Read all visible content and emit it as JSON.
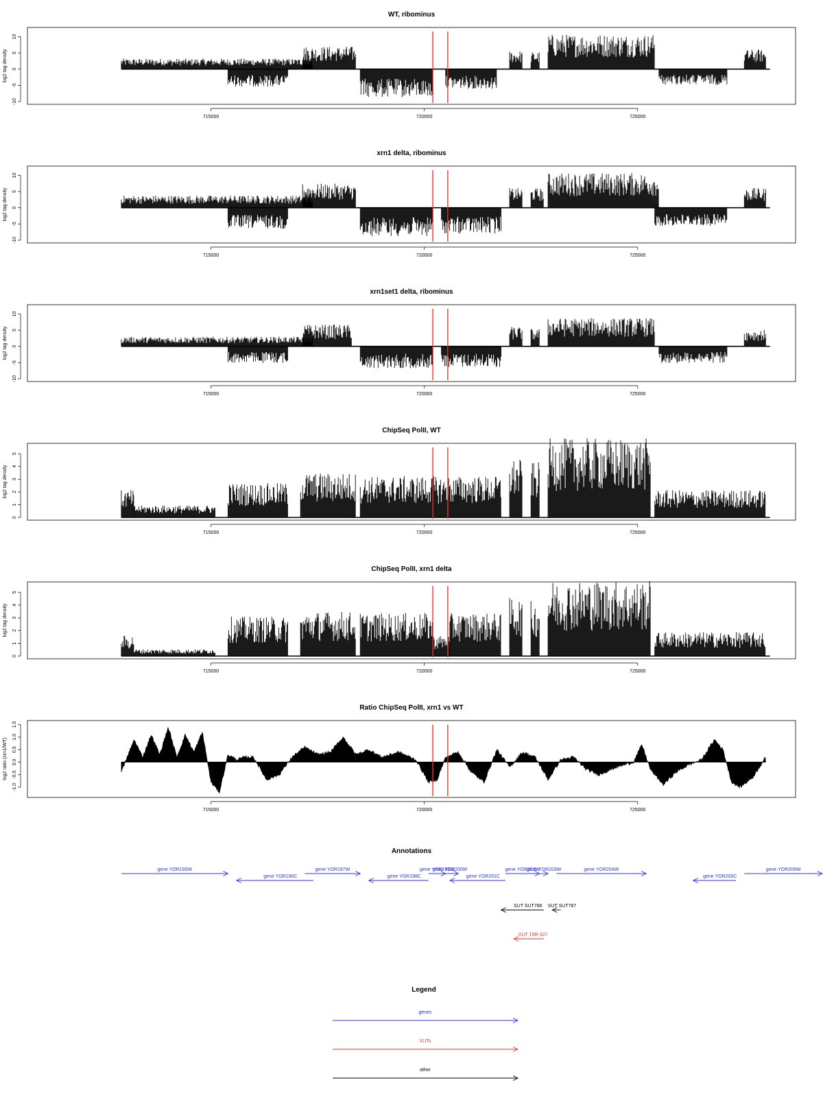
{
  "chart_data": [
    {
      "type": "bar",
      "title": "WT, ribominus",
      "ylabel": "log2 tag density",
      "ylim": [
        -10,
        12
      ],
      "yticks": [
        "-10",
        "-5",
        "0",
        "5",
        "10"
      ],
      "xlim": [
        710700,
        728700
      ],
      "xticks": [
        715000,
        720000,
        725000
      ],
      "xtick_labels": [
        "715000",
        "720000",
        "725000"
      ],
      "highlight_lines": [
        720200,
        720550
      ],
      "highlight_color": "#e8352e",
      "segments": [
        {
          "start": 712900,
          "end": 717400,
          "sign": 1,
          "mean": 2.4
        },
        {
          "start": 715400,
          "end": 716800,
          "sign": -1,
          "mean": 4.0
        },
        {
          "start": 717150,
          "end": 718400,
          "sign": 1,
          "mean": 5.2
        },
        {
          "start": 718500,
          "end": 720200,
          "sign": -1,
          "mean": 6.5
        },
        {
          "start": 720500,
          "end": 721700,
          "sign": -1,
          "mean": 4.5
        },
        {
          "start": 722000,
          "end": 722300,
          "sign": 1,
          "mean": 4.2
        },
        {
          "start": 722500,
          "end": 722700,
          "sign": 1,
          "mean": 4.0
        },
        {
          "start": 722900,
          "end": 725400,
          "sign": 1,
          "mean": 8.0
        },
        {
          "start": 725500,
          "end": 727100,
          "sign": -1,
          "mean": 3.6
        },
        {
          "start": 727500,
          "end": 728000,
          "sign": 1,
          "mean": 4.5
        }
      ]
    },
    {
      "type": "bar",
      "title": "xrn1 delta, ribominus",
      "ylabel": "log2 tag density",
      "ylim": [
        -10,
        12
      ],
      "yticks": [
        "-10",
        "-5",
        "0",
        "5",
        "10"
      ],
      "xlim": [
        710700,
        728700
      ],
      "xticks": [
        715000,
        720000,
        725000
      ],
      "xtick_labels": [
        "715000",
        "720000",
        "725000"
      ],
      "highlight_lines": [
        720200,
        720550
      ],
      "highlight_color": "#e8352e",
      "segments": [
        {
          "start": 712900,
          "end": 717400,
          "sign": 1,
          "mean": 2.8
        },
        {
          "start": 715400,
          "end": 716800,
          "sign": -1,
          "mean": 4.8
        },
        {
          "start": 717150,
          "end": 718400,
          "sign": 1,
          "mean": 5.5
        },
        {
          "start": 718500,
          "end": 720200,
          "sign": -1,
          "mean": 6.5
        },
        {
          "start": 720400,
          "end": 721800,
          "sign": -1,
          "mean": 6.0
        },
        {
          "start": 722000,
          "end": 722300,
          "sign": 1,
          "mean": 4.5
        },
        {
          "start": 722500,
          "end": 722800,
          "sign": 1,
          "mean": 4.5
        },
        {
          "start": 722900,
          "end": 725500,
          "sign": 1,
          "mean": 8.0
        },
        {
          "start": 725400,
          "end": 727100,
          "sign": -1,
          "mean": 4.2
        },
        {
          "start": 727500,
          "end": 728000,
          "sign": 1,
          "mean": 4.5
        }
      ]
    },
    {
      "type": "bar",
      "title": "xrn1set1 delta, ribominus",
      "ylabel": "log2 tag density",
      "ylim": [
        -10,
        12
      ],
      "yticks": [
        "-10",
        "-5",
        "0",
        "5",
        "10"
      ],
      "xlim": [
        710700,
        728700
      ],
      "xticks": [
        715000,
        720000,
        725000
      ],
      "xtick_labels": [
        "715000",
        "720000",
        "725000"
      ],
      "highlight_lines": [
        720200,
        720550
      ],
      "highlight_color": "#e8352e",
      "segments": [
        {
          "start": 712900,
          "end": 717400,
          "sign": 1,
          "mean": 2.2
        },
        {
          "start": 715400,
          "end": 716800,
          "sign": -1,
          "mean": 3.8
        },
        {
          "start": 717150,
          "end": 718300,
          "sign": 1,
          "mean": 5.0
        },
        {
          "start": 718500,
          "end": 720200,
          "sign": -1,
          "mean": 5.0
        },
        {
          "start": 720400,
          "end": 721800,
          "sign": -1,
          "mean": 4.8
        },
        {
          "start": 722000,
          "end": 722300,
          "sign": 1,
          "mean": 4.5
        },
        {
          "start": 722500,
          "end": 722700,
          "sign": 1,
          "mean": 4.0
        },
        {
          "start": 722900,
          "end": 725400,
          "sign": 1,
          "mean": 6.5
        },
        {
          "start": 725500,
          "end": 727100,
          "sign": -1,
          "mean": 3.8
        },
        {
          "start": 727500,
          "end": 728000,
          "sign": 1,
          "mean": 3.8
        }
      ]
    },
    {
      "type": "bar",
      "title": "ChipSeq PolII, WT",
      "ylabel": "log2 tag density",
      "ylim": [
        0,
        5.6
      ],
      "yticks": [
        "0",
        "1",
        "2",
        "3",
        "4",
        "5"
      ],
      "xlim": [
        710700,
        728700
      ],
      "xticks": [
        715000,
        720000,
        725000
      ],
      "xtick_labels": [
        "715000",
        "720000",
        "725000"
      ],
      "highlight_lines": [
        720200,
        720550
      ],
      "highlight_color": "#e8352e",
      "segments": [
        {
          "start": 712900,
          "end": 713200,
          "sign": 1,
          "mean": 1.6
        },
        {
          "start": 713200,
          "end": 715100,
          "sign": 1,
          "mean": 0.7
        },
        {
          "start": 715400,
          "end": 716800,
          "sign": 1,
          "mean": 2.0
        },
        {
          "start": 717100,
          "end": 718400,
          "sign": 1,
          "mean": 2.6
        },
        {
          "start": 718500,
          "end": 721800,
          "sign": 1,
          "mean": 2.4
        },
        {
          "start": 722000,
          "end": 722300,
          "sign": 1,
          "mean": 3.4
        },
        {
          "start": 722500,
          "end": 722700,
          "sign": 1,
          "mean": 3.2
        },
        {
          "start": 722900,
          "end": 725300,
          "sign": 1,
          "mean": 4.6
        },
        {
          "start": 725400,
          "end": 728000,
          "sign": 1,
          "mean": 1.6
        }
      ]
    },
    {
      "type": "bar",
      "title": "ChipSeq PolII, xrn1 delta",
      "ylabel": "log2 tag density",
      "ylim": [
        0,
        5.6
      ],
      "yticks": [
        "0",
        "1",
        "2",
        "3",
        "4",
        "5"
      ],
      "xlim": [
        710700,
        728700
      ],
      "xticks": [
        715000,
        720000,
        725000
      ],
      "xtick_labels": [
        "715000",
        "720000",
        "725000"
      ],
      "highlight_lines": [
        720200,
        720550
      ],
      "highlight_color": "#e8352e",
      "segments": [
        {
          "start": 712900,
          "end": 713200,
          "sign": 1,
          "mean": 1.2
        },
        {
          "start": 713200,
          "end": 715100,
          "sign": 1,
          "mean": 0.4
        },
        {
          "start": 715400,
          "end": 716800,
          "sign": 1,
          "mean": 2.3
        },
        {
          "start": 717100,
          "end": 718400,
          "sign": 1,
          "mean": 2.6
        },
        {
          "start": 718500,
          "end": 720200,
          "sign": 1,
          "mean": 2.5
        },
        {
          "start": 720200,
          "end": 720600,
          "sign": 1,
          "mean": 1.2
        },
        {
          "start": 720600,
          "end": 721800,
          "sign": 1,
          "mean": 2.5
        },
        {
          "start": 722000,
          "end": 722300,
          "sign": 1,
          "mean": 3.4
        },
        {
          "start": 722500,
          "end": 722700,
          "sign": 1,
          "mean": 3.2
        },
        {
          "start": 722900,
          "end": 725300,
          "sign": 1,
          "mean": 4.4
        },
        {
          "start": 725400,
          "end": 728000,
          "sign": 1,
          "mean": 1.4
        }
      ]
    },
    {
      "type": "area",
      "title": "Ratio ChipSeq PolII, xrn1 vs WT",
      "ylabel": "log2 ratio (xrn1/WT)",
      "ylim": [
        -1.3,
        1.55
      ],
      "yticks": [
        "-1.0",
        "-0.5",
        "0.0",
        "0.5",
        "1.0",
        "1.5"
      ],
      "ytick_values": [
        -1.0,
        -0.5,
        0.0,
        0.5,
        1.0,
        1.5
      ],
      "xlim": [
        710700,
        728700
      ],
      "xticks": [
        715000,
        720000,
        725000
      ],
      "xtick_labels": [
        "715000",
        "720000",
        "725000"
      ],
      "highlight_lines": [
        720200,
        720550
      ],
      "highlight_color": "#e8352e",
      "x": [
        712900,
        713200,
        713400,
        713600,
        713800,
        714000,
        714200,
        714400,
        714600,
        714800,
        715000,
        715200,
        715400,
        715600,
        715800,
        716000,
        716300,
        716600,
        716900,
        717200,
        717500,
        717800,
        718100,
        718400,
        718700,
        719000,
        719400,
        719800,
        720100,
        720300,
        720500,
        720800,
        721100,
        721400,
        721700,
        722000,
        722300,
        722600,
        722900,
        723200,
        723500,
        723800,
        724100,
        724500,
        724900,
        725100,
        725300,
        725600,
        725900,
        726200,
        726500,
        726800,
        727000,
        727200,
        727400,
        727700,
        728000
      ],
      "y": [
        -0.4,
        0.9,
        0.2,
        1.1,
        0.3,
        1.4,
        0.2,
        1.1,
        0.4,
        1.2,
        -0.8,
        -1.2,
        0.3,
        0.1,
        0.2,
        0.2,
        -0.7,
        -0.5,
        0.2,
        0.6,
        0.3,
        0.4,
        1.0,
        0.3,
        0.5,
        0.2,
        0.4,
        0.1,
        -0.8,
        -0.7,
        0.2,
        0.4,
        -0.4,
        -0.8,
        0.5,
        -0.2,
        0.4,
        0.2,
        -0.7,
        0.1,
        0.2,
        -0.3,
        -0.5,
        -0.2,
        0.0,
        0.7,
        -0.3,
        -0.9,
        -0.4,
        -0.1,
        0.1,
        0.9,
        0.5,
        -0.8,
        -1.0,
        -0.6,
        0.2
      ]
    }
  ],
  "annotations": {
    "title": "Annotations",
    "genes": [
      {
        "label": "gene YOR195W",
        "start": 712900,
        "end": 715400,
        "strand": "+",
        "row": 0
      },
      {
        "label": "gene YOR196C",
        "start": 715600,
        "end": 717400,
        "strand": "-",
        "row": 1
      },
      {
        "label": "gene YOR197W",
        "start": 717200,
        "end": 718500,
        "strand": "+",
        "row": 0
      },
      {
        "label": "gene YOR198C",
        "start": 718700,
        "end": 720100,
        "strand": "-",
        "row": 1
      },
      {
        "label": "gene YOR199W",
        "start": 720100,
        "end": 720500,
        "strand": "+",
        "row": 0
      },
      {
        "label": "gene YOR200W",
        "start": 720400,
        "end": 720800,
        "strand": "+",
        "row": 0
      },
      {
        "label": "gene YOR201C",
        "start": 720600,
        "end": 721900,
        "strand": "-",
        "row": 1
      },
      {
        "label": "gene YOR202W",
        "start": 721900,
        "end": 722700,
        "strand": "+",
        "row": 0
      },
      {
        "label": "gene YOR203W",
        "start": 722700,
        "end": 722900,
        "strand": "+",
        "row": 0
      },
      {
        "label": "gene YOR204W",
        "start": 723100,
        "end": 725200,
        "strand": "+",
        "row": 0
      },
      {
        "label": "gene YOR205C",
        "start": 726300,
        "end": 727300,
        "strand": "-",
        "row": 1
      },
      {
        "label": "gene YOR206W",
        "start": 727500,
        "end": 729600,
        "strand": "+",
        "row": 0
      }
    ],
    "suts": [
      {
        "label": "SUT SUT786",
        "start": 721800,
        "end": 722800,
        "strand": "-"
      },
      {
        "label": "SUT SUT787",
        "start": 723000,
        "end": 723200,
        "strand": "-"
      }
    ],
    "xuts": [
      {
        "label": "XUT 15R-327",
        "start": 722100,
        "end": 722800,
        "strand": "-"
      }
    ]
  },
  "legend": {
    "title": "Legend",
    "items": [
      {
        "label": "genes",
        "color": "#2b33e6"
      },
      {
        "label": "XUTs",
        "color": "#e8352e"
      },
      {
        "label": "other",
        "color": "#000000"
      }
    ]
  }
}
